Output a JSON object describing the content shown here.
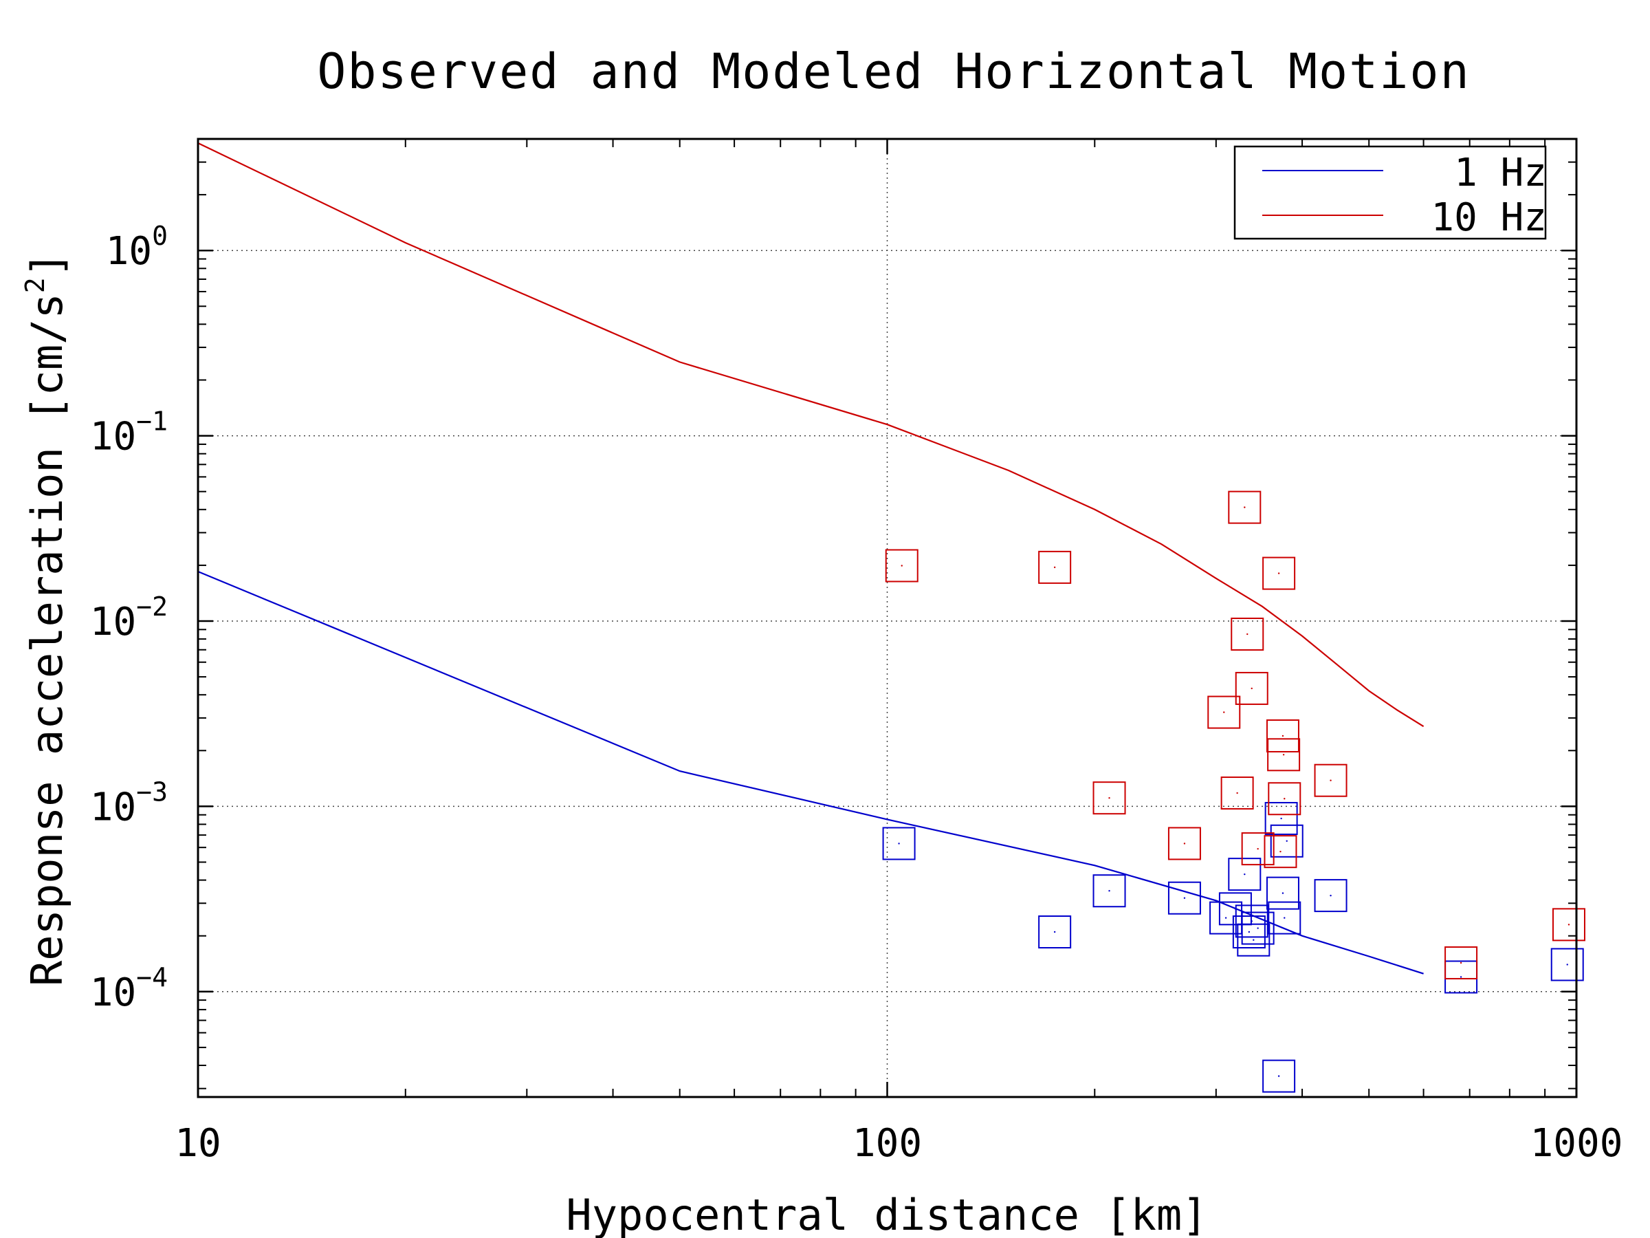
{
  "chart_data": {
    "type": "scatter",
    "title": "Observed and Modeled Horizontal Motion",
    "xlabel": "Hypocentral distance [km]",
    "ylabel": "Response acceleration [cm/s²]",
    "ylabel_parts": {
      "main": "Response acceleration [cm/s",
      "sup": "2",
      "close": "]"
    },
    "x_scale": "log",
    "y_scale": "log",
    "xlim": [
      10,
      1000
    ],
    "ylim": [
      2.7e-05,
      4.0
    ],
    "grid": true,
    "legend_position": "top-right",
    "x_ticks": [
      {
        "value": 10,
        "label": "10"
      },
      {
        "value": 100,
        "label": "100"
      },
      {
        "value": 1000,
        "label": "1000"
      }
    ],
    "y_ticks": [
      {
        "value": 1,
        "base": "10",
        "exp": "0"
      },
      {
        "value": 0.1,
        "base": "10",
        "exp": "−1"
      },
      {
        "value": 0.01,
        "base": "10",
        "exp": "−2"
      },
      {
        "value": 0.001,
        "base": "10",
        "exp": "−3"
      },
      {
        "value": 0.0001,
        "base": "10",
        "exp": "−4"
      }
    ],
    "series": [
      {
        "name": "1 Hz",
        "color": "#0000cc",
        "line": [
          [
            10,
            0.0185
          ],
          [
            50,
            0.00155
          ],
          [
            100,
            0.00085
          ],
          [
            200,
            0.00048
          ],
          [
            300,
            0.00031
          ],
          [
            400,
            0.0002
          ],
          [
            500,
            0.000155
          ],
          [
            600,
            0.000125
          ]
        ],
        "points": [
          [
            104,
            0.00063
          ],
          [
            175,
            0.00021
          ],
          [
            210,
            0.00035
          ],
          [
            270,
            0.00032
          ],
          [
            310,
            0.00025
          ],
          [
            320,
            0.00028
          ],
          [
            330,
            0.00043
          ],
          [
            335,
            0.00021
          ],
          [
            338,
            0.00024
          ],
          [
            340,
            0.00019
          ],
          [
            345,
            0.00022
          ],
          [
            370,
            3.5e-05
          ],
          [
            373,
            0.00086
          ],
          [
            375,
            0.00034
          ],
          [
            377,
            0.00025
          ],
          [
            380,
            0.00065
          ],
          [
            440,
            0.00033
          ],
          [
            680,
            0.00012
          ],
          [
            970,
            0.00014
          ]
        ]
      },
      {
        "name": "10 Hz",
        "color": "#cc0000",
        "line": [
          [
            10,
            3.8
          ],
          [
            20,
            1.1
          ],
          [
            50,
            0.25
          ],
          [
            100,
            0.115
          ],
          [
            150,
            0.065
          ],
          [
            200,
            0.04
          ],
          [
            250,
            0.026
          ],
          [
            300,
            0.017
          ],
          [
            350,
            0.012
          ],
          [
            400,
            0.0083
          ],
          [
            450,
            0.0058
          ],
          [
            500,
            0.0042
          ],
          [
            550,
            0.0033
          ],
          [
            600,
            0.0027
          ]
        ],
        "points": [
          [
            105,
            0.0199
          ],
          [
            175,
            0.0195
          ],
          [
            210,
            0.00111
          ],
          [
            270,
            0.00063
          ],
          [
            308,
            0.00322
          ],
          [
            322,
            0.00118
          ],
          [
            330,
            0.0411
          ],
          [
            333,
            0.0085
          ],
          [
            338,
            0.00433
          ],
          [
            345,
            0.00059
          ],
          [
            370,
            0.0181
          ],
          [
            372,
            0.00057
          ],
          [
            375,
            0.0024
          ],
          [
            376,
            0.0019
          ],
          [
            377,
            0.0011
          ],
          [
            440,
            0.00138
          ],
          [
            680,
            0.000143
          ],
          [
            975,
            0.00023
          ]
        ]
      }
    ]
  }
}
